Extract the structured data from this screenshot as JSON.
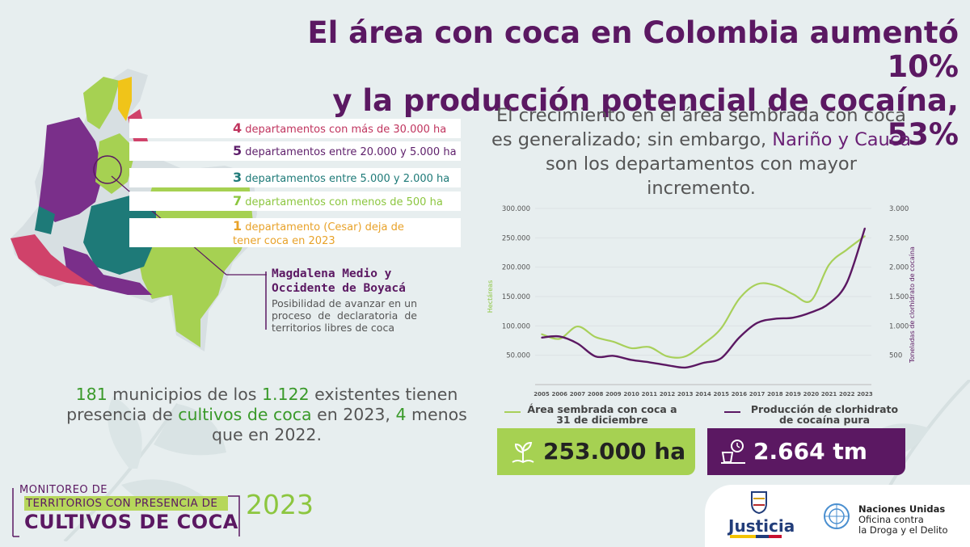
{
  "title_line1": "El área con coca en Colombia aumentó 10%",
  "title_line2": "y la producción potencial de cocaína, 53%",
  "subtitle": {
    "part1": "El crecimiento en el área sembrada con coca es generalizado; sin embargo, ",
    "hl1": "Nariño y Cauca",
    "part2": " son los departamentos con mayor incremento."
  },
  "legend": [
    {
      "num": "4",
      "text": "departamentos con más de 30.000 ha",
      "color": "#c0345e"
    },
    {
      "num": "5",
      "text": "departamentos entre 20.000 y 5.000 ha",
      "color": "#5e1f6b"
    },
    {
      "num": "3",
      "text": "departamentos entre 5.000 y 2.000 ha",
      "color": "#1e7a78"
    },
    {
      "num": "7",
      "text": "departamentos con menos de 500 ha",
      "color": "#8cc63f"
    },
    {
      "num": "1",
      "text": "departamento (Cesar) deja de tener coca en 2023",
      "color": "#e8a229"
    }
  ],
  "magdalena": {
    "title": "Magdalena Medio y Occidente de Boyacá",
    "text": "Posibilidad de avanzar en un proceso de declaratoria de territorios libres de coca"
  },
  "municipios": {
    "n1": "181",
    "t1": " municipios de los ",
    "n2": "1.122",
    "t2": " existentes tienen presencia de ",
    "n3": "cultivos de coca",
    "t3": " en 2023, ",
    "n4": "4",
    "t4": " menos que en 2022."
  },
  "chart_data": {
    "type": "line",
    "x": [
      2005,
      2006,
      2007,
      2008,
      2009,
      2010,
      2011,
      2012,
      2013,
      2014,
      2015,
      2016,
      2017,
      2018,
      2019,
      2020,
      2021,
      2022,
      2023
    ],
    "ylabel": "Hectáreas",
    "y2label": "Toneladas de clorhidrato de cocaína",
    "ylim": [
      0,
      300000
    ],
    "y2lim": [
      0,
      3000
    ],
    "yticks": [
      "50.000",
      "100.000",
      "150.000",
      "200.000",
      "250.000",
      "300.000"
    ],
    "y2ticks": [
      "500",
      "1.000",
      "1.500",
      "2.000",
      "2.500",
      "3.000"
    ],
    "series": [
      {
        "name": "Área sembrada con coca a 31 de diciembre",
        "axis": "left",
        "color": "#a8d05a",
        "values": [
          86000,
          78000,
          99000,
          81000,
          73000,
          62000,
          64000,
          48000,
          48000,
          69000,
          96000,
          146000,
          171000,
          169000,
          154000,
          143000,
          204000,
          230000,
          253000
        ]
      },
      {
        "name": "Producción de clorhidrato de cocaína pura",
        "axis": "right",
        "color": "#5b1862",
        "values": [
          800,
          820,
          700,
          480,
          490,
          420,
          380,
          330,
          290,
          370,
          450,
          800,
          1050,
          1120,
          1140,
          1230,
          1380,
          1740,
          2664
        ]
      }
    ]
  },
  "chart_legend": {
    "s1": "Área sembrada con coca a 31 de diciembre",
    "s2": "Producción de clorhidrato de cocaína pura"
  },
  "highlights": {
    "area": "253.000 ha",
    "production": "2.664 tm"
  },
  "brand": {
    "line1": "MONITOREO DE",
    "line2": "TERRITORIOS CON PRESENCIA DE",
    "line3": "CULTIVOS DE COCA",
    "year": "2023"
  },
  "logos": {
    "justicia": "Justicia",
    "un1": "Naciones Unidas",
    "un2": "Oficina contra",
    "un3": "la Droga y el Delito"
  }
}
